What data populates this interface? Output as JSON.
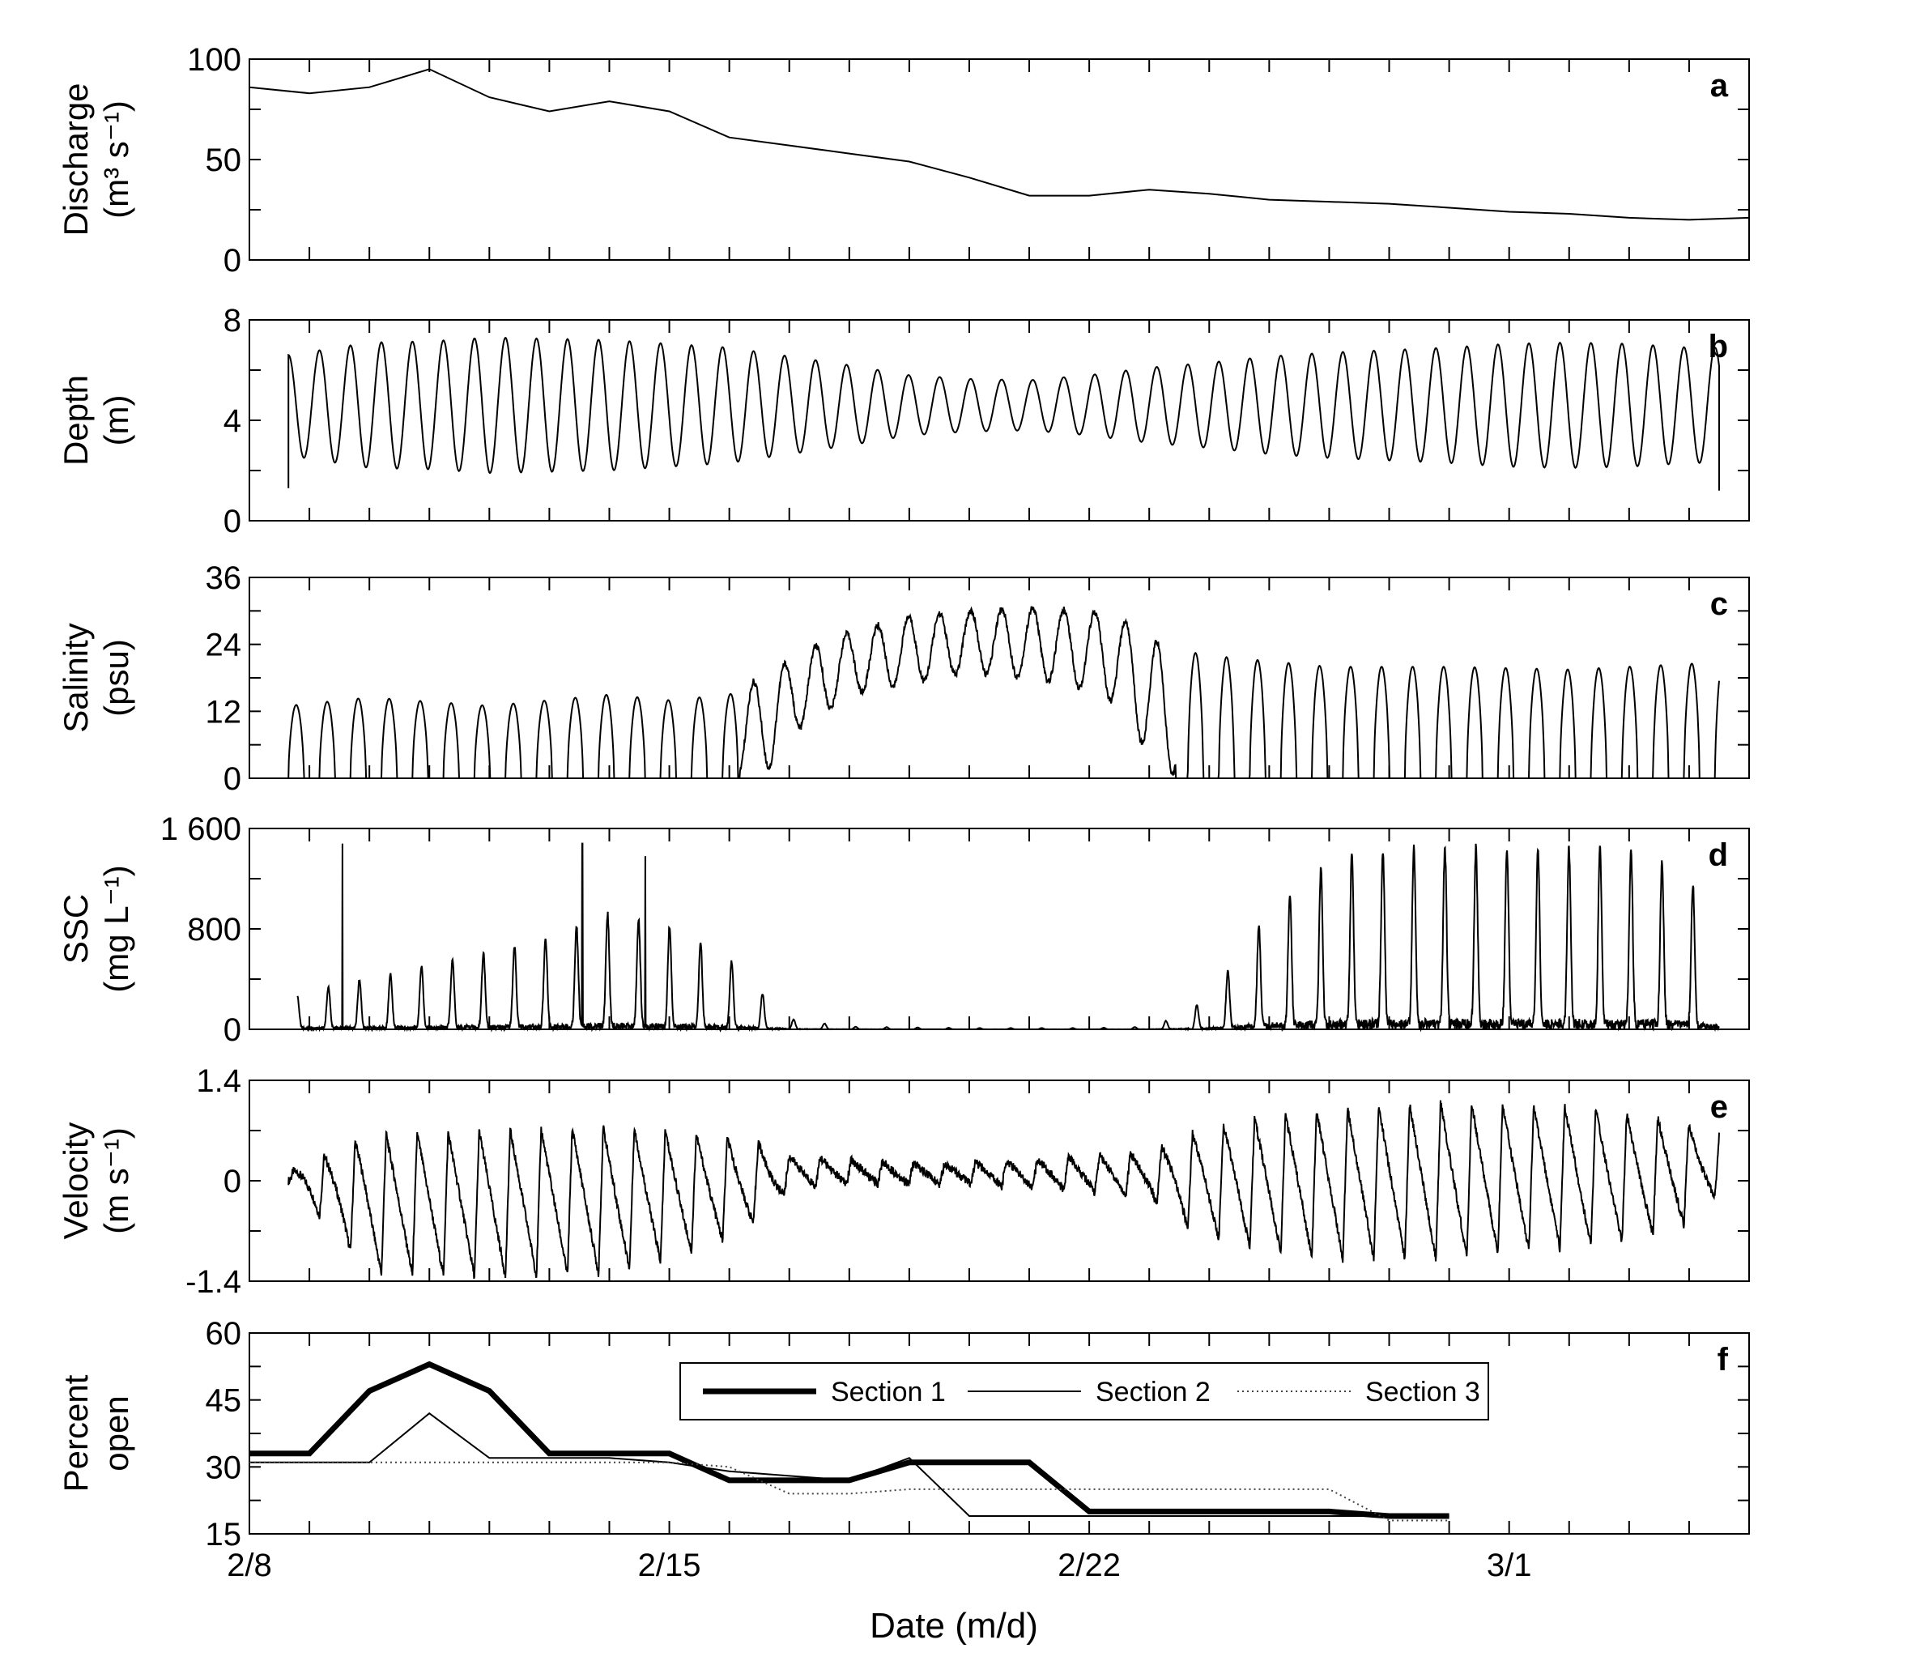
{
  "figure": {
    "xlabel": "Date (m/d)",
    "x_tick_labels": [
      "2/8",
      "2/15",
      "2/22",
      "3/1"
    ]
  },
  "chart_data": [
    {
      "id": "a",
      "type": "line",
      "panel_label": "a",
      "ylabel_line1": "Discharge",
      "ylabel_line2": "(m³ s⁻¹)",
      "ylim": [
        0,
        100
      ],
      "yticks": [
        0,
        50,
        100
      ],
      "y_tick_labels": [
        "0",
        "50",
        "100"
      ],
      "xlim": [
        0,
        25
      ],
      "x": [
        0,
        1,
        2,
        3,
        4,
        5,
        6,
        7,
        8,
        9,
        10,
        11,
        12,
        13,
        14,
        15,
        16,
        17,
        18,
        19,
        20,
        21,
        22,
        23,
        24,
        25
      ],
      "y": [
        86,
        83,
        86,
        95,
        81,
        74,
        79,
        74,
        61,
        57,
        53,
        49,
        41,
        32,
        32,
        35,
        33,
        30,
        29,
        28,
        26,
        24,
        23,
        21,
        20,
        21
      ]
    },
    {
      "id": "b",
      "type": "line",
      "panel_label": "b",
      "ylabel_line1": "Depth",
      "ylabel_line2": "(m)",
      "ylim": [
        0,
        8
      ],
      "yticks": [
        0,
        4,
        8
      ],
      "y_tick_labels": [
        "0",
        "4",
        "8"
      ],
      "xlim": [
        0,
        25
      ],
      "t_start": 0.65,
      "t_end": 24.5,
      "period_days": 0.517,
      "amp_days": [
        0.65,
        2,
        3,
        4,
        5,
        6,
        8,
        10,
        11,
        12,
        13,
        14,
        15,
        16,
        17,
        18,
        19,
        20,
        21,
        22,
        23,
        24,
        24.5
      ],
      "amp_values": [
        2.0,
        2.5,
        2.55,
        2.7,
        2.65,
        2.6,
        2.3,
        1.6,
        1.2,
        1.05,
        1.0,
        1.2,
        1.5,
        1.7,
        1.95,
        2.1,
        2.2,
        2.3,
        2.45,
        2.5,
        2.45,
        2.3,
        2.3
      ],
      "mean_value": 4.6,
      "start_value": 1.3,
      "end_value": 1.2
    },
    {
      "id": "c",
      "type": "line",
      "panel_label": "c",
      "ylabel_line1": "Salinity",
      "ylabel_line2": "(psu)",
      "ylim": [
        0,
        36
      ],
      "yticks": [
        0,
        12,
        24,
        36
      ],
      "y_tick_labels": [
        "0",
        "12",
        "24",
        "36"
      ],
      "xlim": [
        0,
        25
      ],
      "t_start": 0.65,
      "t_end": 24.5,
      "period_days": 0.517,
      "envelope_days": [
        0.65,
        2,
        4,
        6,
        7,
        8,
        8.7,
        9,
        9.5,
        10,
        11,
        12,
        13,
        14,
        14.5,
        15,
        15.5,
        16,
        17,
        18,
        20,
        22,
        24,
        24.5
      ],
      "envelope_max": [
        13,
        14.5,
        13,
        15,
        14,
        15,
        19,
        21,
        24,
        26,
        29,
        30,
        30.5,
        30,
        29,
        25,
        23,
        22,
        21,
        20,
        20,
        19.5,
        20.5,
        21
      ],
      "envelope_min": [
        0,
        0,
        0,
        0,
        0,
        0,
        2,
        8,
        11,
        15,
        17,
        19,
        18,
        16,
        13,
        4,
        0,
        0,
        0,
        0,
        0,
        0,
        0,
        0
      ]
    },
    {
      "id": "d",
      "type": "line",
      "panel_label": "d",
      "ylabel_line1": "SSC",
      "ylabel_line2": "(mg L⁻¹)",
      "ylim": [
        0,
        1600
      ],
      "yticks": [
        0,
        800,
        1600
      ],
      "y_tick_labels": [
        "0",
        "800",
        "1 600"
      ],
      "xlim": [
        0,
        25
      ],
      "t_start": 0.8,
      "t_end": 24.5,
      "period_days": 0.517,
      "peak_days": [
        0.8,
        1.5,
        3,
        5,
        6,
        7,
        8,
        8.5,
        9,
        10,
        12,
        14,
        15,
        15.5,
        16,
        17,
        18,
        19,
        20,
        22,
        23,
        24,
        24.5
      ],
      "peak_values": [
        250,
        350,
        500,
        700,
        900,
        800,
        550,
        300,
        80,
        20,
        10,
        10,
        20,
        100,
        250,
        900,
        1300,
        1400,
        1400,
        1400,
        1400,
        1200,
        600
      ],
      "spikes": [
        {
          "x": 1.55,
          "y": 1480
        },
        {
          "x": 5.55,
          "y": 1480
        },
        {
          "x": 6.6,
          "y": 1380
        }
      ]
    },
    {
      "id": "e",
      "type": "line",
      "panel_label": "e",
      "ylabel_line1": "Velocity",
      "ylabel_line2": "(m s⁻¹)",
      "ylim": [
        -1.4,
        1.4
      ],
      "yticks": [
        -1.4,
        0,
        1.4
      ],
      "y_tick_labels": [
        "-1.4",
        "0",
        "1.4"
      ],
      "xlim": [
        0,
        25
      ],
      "t_start": 0.65,
      "t_end": 24.5,
      "period_days": 0.517,
      "envelope_days": [
        0.65,
        2,
        4,
        6,
        7,
        8,
        8.5,
        9,
        10,
        11,
        12,
        13,
        14,
        15,
        15.5,
        16,
        17,
        18,
        19,
        20,
        21,
        22,
        23,
        24,
        24.5
      ],
      "envelope_max": [
        0.1,
        0.65,
        0.7,
        0.75,
        0.7,
        0.6,
        0.55,
        0.35,
        0.3,
        0.25,
        0.25,
        0.3,
        0.35,
        0.4,
        0.6,
        0.75,
        0.9,
        1.0,
        1.05,
        1.1,
        1.05,
        1.05,
        0.95,
        0.8,
        0.75
      ],
      "envelope_min": [
        0,
        -1.3,
        -1.35,
        -1.3,
        -1.1,
        -0.8,
        -0.55,
        -0.1,
        -0.05,
        -0.05,
        -0.05,
        -0.1,
        -0.15,
        -0.25,
        -0.6,
        -0.8,
        -1.0,
        -1.1,
        -1.1,
        -1.1,
        -1.0,
        -0.95,
        -0.85,
        -0.6,
        -0.15
      ]
    },
    {
      "id": "f",
      "type": "line",
      "panel_label": "f",
      "ylabel_line1": "Percent",
      "ylabel_line2": "open",
      "ylim": [
        15,
        60
      ],
      "yticks": [
        15,
        30,
        45,
        60
      ],
      "y_tick_labels": [
        "15",
        "30",
        "45",
        "60"
      ],
      "xlim": [
        0,
        25
      ],
      "legend": {
        "position": "top-center"
      },
      "series": [
        {
          "name": "Section 1",
          "style": "thick",
          "x": [
            0,
            1,
            2,
            3,
            4,
            5,
            6,
            7,
            8,
            9,
            10,
            11,
            12,
            13,
            14,
            15,
            16,
            17,
            18,
            19,
            20
          ],
          "y": [
            33,
            33,
            47,
            53,
            47,
            33,
            33,
            33,
            27,
            27,
            27,
            31,
            31,
            31,
            20,
            20,
            20,
            20,
            20,
            19,
            19
          ]
        },
        {
          "name": "Section 2",
          "style": "thin",
          "x": [
            0,
            1,
            2,
            3,
            4,
            5,
            6,
            7,
            8,
            9,
            10,
            11,
            12,
            13,
            14,
            15,
            16,
            17,
            18,
            19,
            20
          ],
          "y": [
            31,
            31,
            31,
            42,
            32,
            32,
            32,
            31,
            29,
            28,
            27,
            32,
            19,
            19,
            19,
            19,
            19,
            19,
            19,
            19,
            19
          ]
        },
        {
          "name": "Section 3",
          "style": "dotted",
          "x": [
            0,
            1,
            2,
            3,
            4,
            5,
            6,
            7,
            8,
            9,
            10,
            11,
            12,
            13,
            14,
            15,
            16,
            17,
            18,
            19,
            20
          ],
          "y": [
            31,
            31,
            31,
            31,
            31,
            31,
            31,
            31,
            30,
            24,
            24,
            25,
            25,
            25,
            25,
            25,
            25,
            25,
            25,
            18,
            18
          ]
        }
      ]
    }
  ]
}
